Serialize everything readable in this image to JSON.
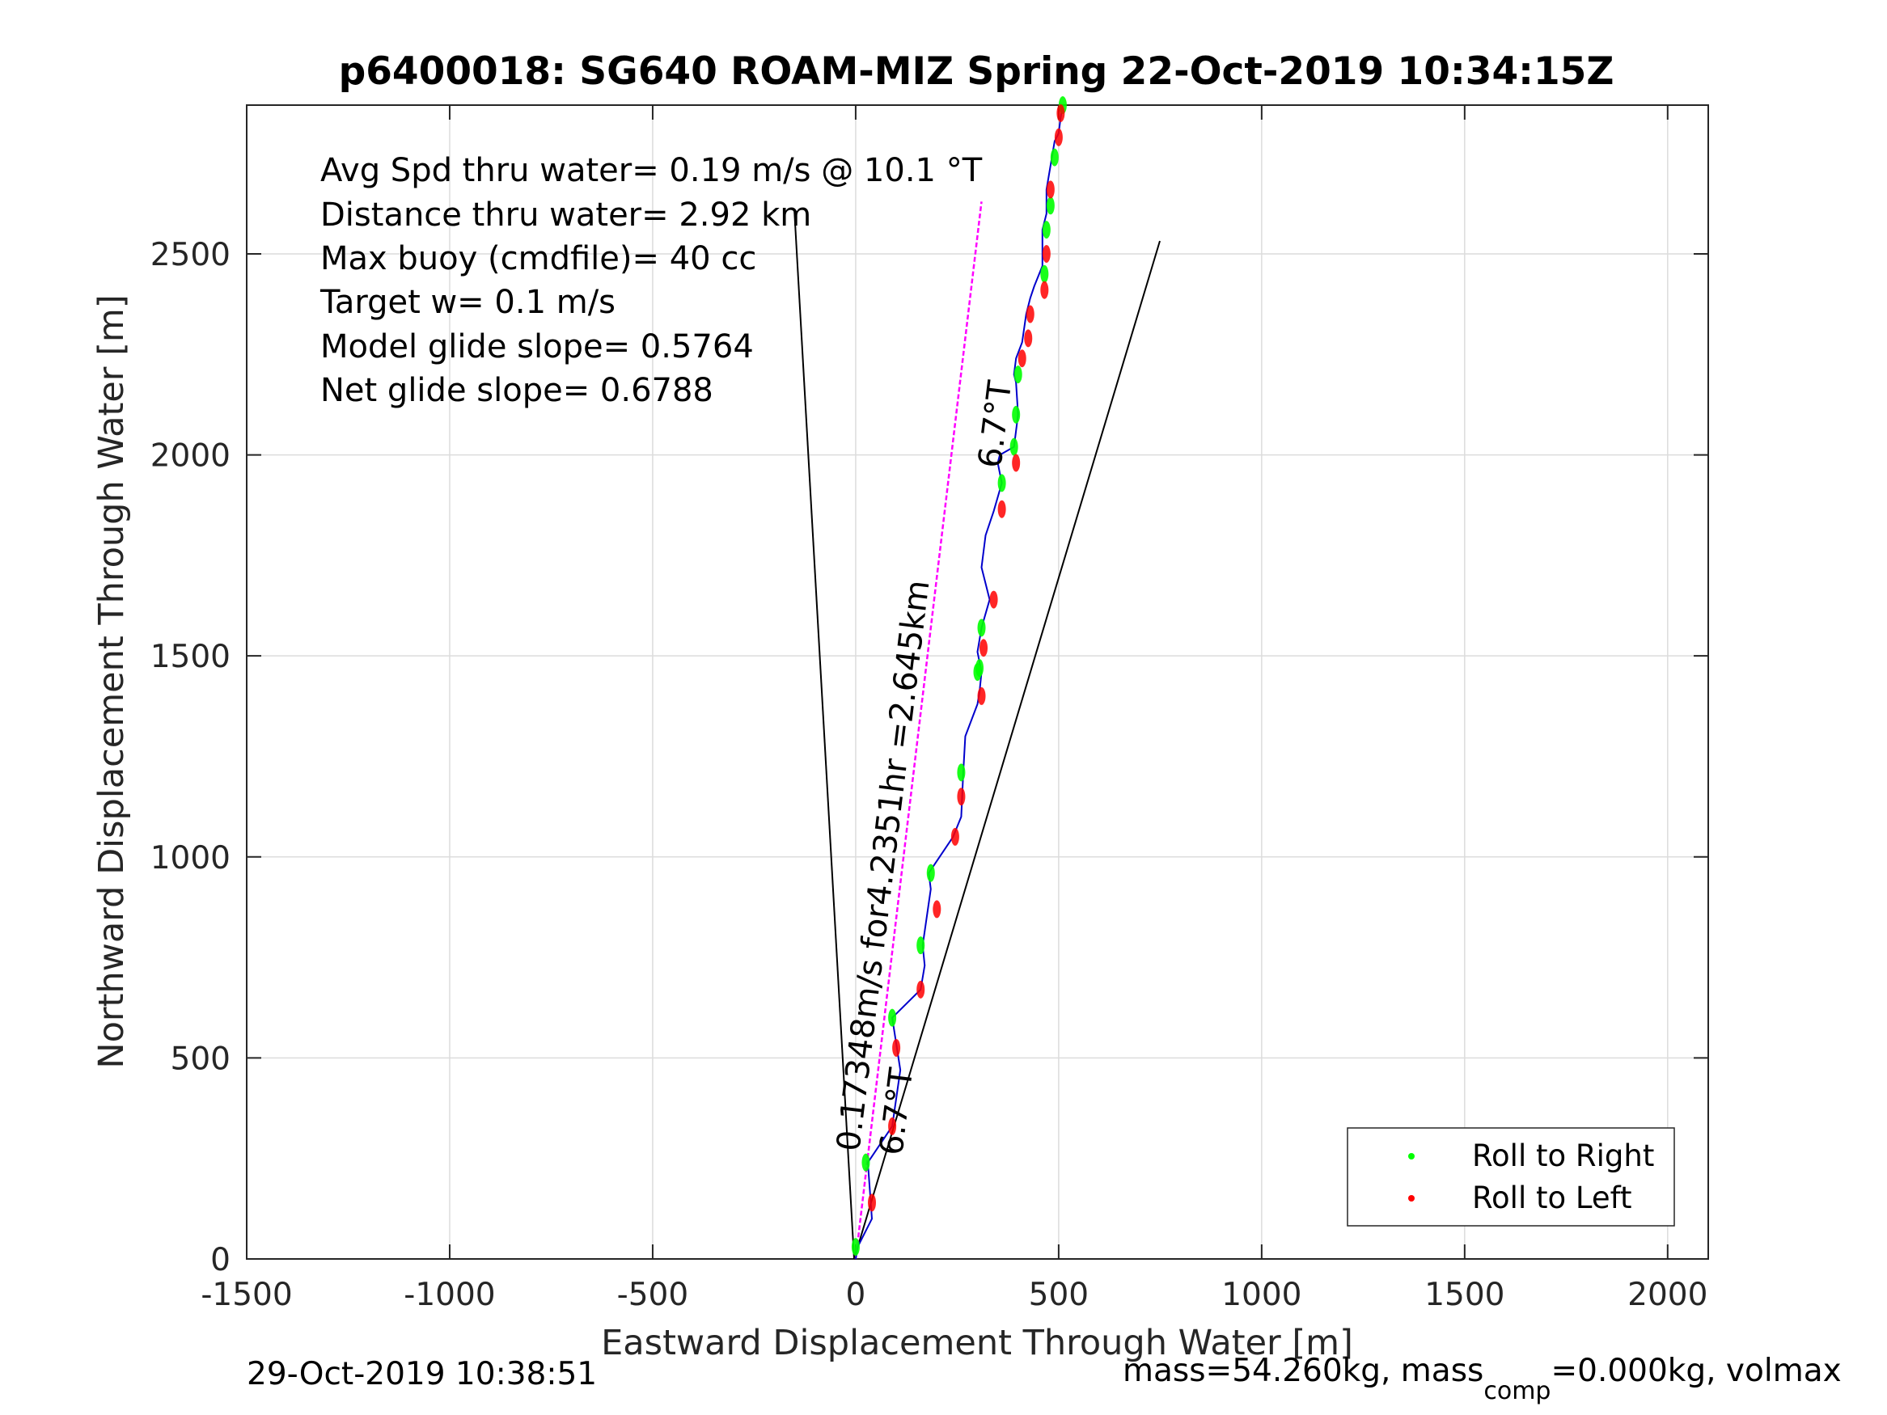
{
  "chart_data": {
    "type": "line",
    "title": "p6400018: SG640 ROAM-MIZ Spring 22-Oct-2019 10:34:15Z",
    "xlabel": "Eastward Displacement Through Water [m]",
    "ylabel": "Northward Displacement Through Water [m]",
    "xlim": [
      -1500,
      2100
    ],
    "ylim": [
      0,
      2870
    ],
    "xticks": [
      -1500,
      -1000,
      -500,
      0,
      500,
      1000,
      1500,
      2000
    ],
    "yticks": [
      0,
      500,
      1000,
      1500,
      2000,
      2500
    ],
    "grid": true,
    "legend_position": "bottom-right",
    "stats": [
      "Avg Spd thru water=  0.19 m/s @  10.1 °T",
      "Distance thru water=  2.92 km",
      "Max buoy (cmdfile)= 40 cc",
      "Target w= 0.1 m/s",
      "Model glide slope= 0.5764",
      "Net glide slope= 0.6788"
    ],
    "line_annotations": {
      "heading_label": "6.7°T",
      "speed_label": "0.17348m/s for4.2351hr =2.645km"
    },
    "series": [
      {
        "name": "track",
        "color": "#0000cc",
        "x": [
          0,
          5,
          40,
          30,
          90,
          110,
          90,
          160,
          170,
          165,
          185,
          180,
          240,
          260,
          265,
          270,
          300,
          305,
          310,
          300,
          310,
          330,
          310,
          320,
          340,
          360,
          350,
          355,
          390,
          400,
          395,
          390,
          395,
          410,
          420,
          430,
          440,
          460,
          460,
          470,
          470,
          480,
          490,
          500,
          505,
          510
        ],
        "y": [
          0,
          30,
          100,
          240,
          330,
          470,
          600,
          670,
          730,
          780,
          920,
          960,
          1050,
          1100,
          1210,
          1300,
          1380,
          1410,
          1460,
          1510,
          1570,
          1640,
          1720,
          1800,
          1860,
          1930,
          1980,
          2000,
          2020,
          2100,
          2180,
          2200,
          2240,
          2280,
          2350,
          2390,
          2420,
          2470,
          2560,
          2600,
          2660,
          2720,
          2780,
          2800,
          2840,
          2870
        ]
      },
      {
        "name": "Roll to Right",
        "color": "#00ff00",
        "x": [
          0,
          25,
          90,
          160,
          185,
          260,
          300,
          305,
          310,
          360,
          390,
          395,
          400,
          465,
          470,
          480,
          490,
          510
        ],
        "y": [
          30,
          240,
          600,
          780,
          960,
          1210,
          1460,
          1470,
          1570,
          1930,
          2020,
          2100,
          2200,
          2450,
          2560,
          2620,
          2740,
          2870
        ]
      },
      {
        "name": "Roll to Left",
        "color": "#ff0000",
        "x": [
          40,
          90,
          100,
          160,
          200,
          245,
          260,
          310,
          315,
          340,
          360,
          395,
          410,
          425,
          430,
          465,
          470,
          480,
          500,
          505
        ],
        "y": [
          140,
          330,
          525,
          670,
          870,
          1050,
          1150,
          1400,
          1520,
          1640,
          1865,
          1980,
          2240,
          2290,
          2350,
          2410,
          2500,
          2660,
          2790,
          2850
        ]
      },
      {
        "name": "heading line",
        "color": "#ff00ff",
        "x": [
          0,
          310
        ],
        "y": [
          0,
          2630
        ]
      }
    ],
    "footer_left": "29-Oct-2019 10:38:51",
    "footer_right_mass": "mass=54.260kg, mass",
    "footer_right_sub": "comp",
    "footer_right_rest": "=0.000kg, volmax"
  }
}
